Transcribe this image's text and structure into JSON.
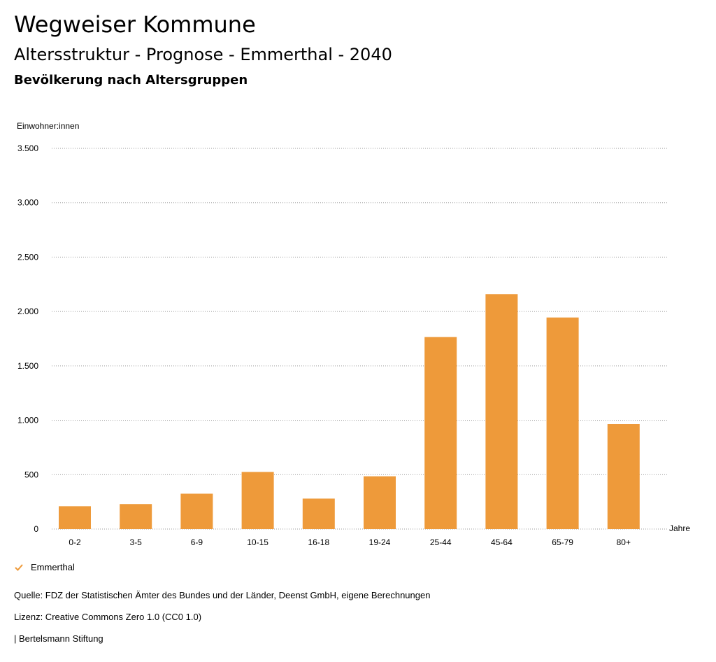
{
  "header": {
    "title": "Wegweiser Kommune",
    "subtitle": "Altersstruktur - Prognose - Emmerthal - 2040",
    "subsubtitle": "Bevölkerung nach Altersgruppen"
  },
  "chart_data": {
    "type": "bar",
    "title": "Bevölkerung nach Altersgruppen",
    "ylabel": "Einwohner:innen",
    "xlabel": "Jahre",
    "categories": [
      "0-2",
      "3-5",
      "6-9",
      "10-15",
      "16-18",
      "19-24",
      "25-44",
      "45-64",
      "65-79",
      "80+"
    ],
    "series": [
      {
        "name": "Emmerthal",
        "values": [
          210,
          230,
          325,
          525,
          280,
          485,
          1765,
          2160,
          1945,
          965
        ]
      }
    ],
    "ylim": [
      0,
      3500
    ],
    "yticks": [
      0,
      500,
      1000,
      1500,
      2000,
      2500,
      3000,
      3500
    ],
    "ytick_labels": [
      "0",
      "500",
      "1.000",
      "1.500",
      "2.000",
      "2.500",
      "3.000",
      "3.500"
    ],
    "grid": true,
    "bar_color": "#ee9a3a",
    "legend_position": "bottom-left"
  },
  "legend": {
    "label": "Emmerthal",
    "color": "#ee9a3a"
  },
  "footer": {
    "source": "Quelle: FDZ der Statistischen Ämter des Bundes und der Länder, Deenst GmbH, eigene Berechnungen",
    "license": "Lizenz: Creative Commons Zero 1.0 (CC0 1.0)",
    "publisher": "| Bertelsmann Stiftung"
  }
}
